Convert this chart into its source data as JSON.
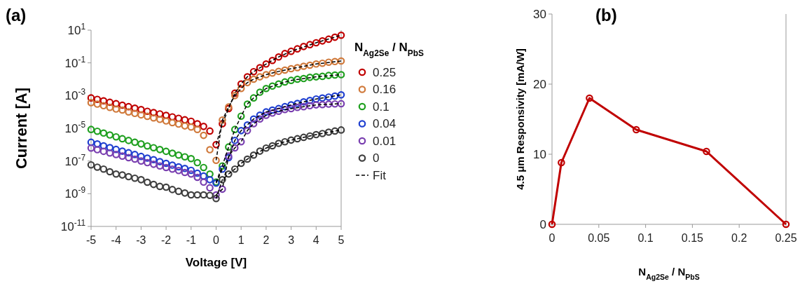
{
  "chart_data": [
    {
      "type": "scatter",
      "title": "(a)",
      "xlabel": "Voltage [V]",
      "ylabel": "Current [A]",
      "legend_title": "N$_{Ag2Se}$ / N$_{PbS}$",
      "legend": "right",
      "log": "y",
      "marker": "circle",
      "x": [
        -5,
        -4.75,
        -4.5,
        -4.25,
        -4,
        -3.75,
        -3.5,
        -3.25,
        -3,
        -2.75,
        -2.5,
        -2.25,
        -2,
        -1.75,
        -1.5,
        -1.25,
        -1,
        -0.75,
        -0.5,
        -0.25,
        0,
        0.25,
        0.5,
        0.75,
        1,
        1.25,
        1.5,
        1.75,
        2,
        2.25,
        2.5,
        2.75,
        3,
        3.25,
        3.5,
        3.75,
        4,
        4.25,
        4.5,
        4.75,
        5
      ],
      "xlim": [
        -5,
        5
      ],
      "xticks": [
        -5,
        -4,
        -3,
        -2,
        -1,
        0,
        1,
        2,
        3,
        4,
        5
      ],
      "ylim": [
        1e-11,
        10
      ],
      "yticks": [
        {
          "value": 1e-11,
          "label": "10$^{-11}$"
        },
        {
          "value": 1e-09,
          "label": "10$^{-9}$"
        },
        {
          "value": 1e-07,
          "label": "10$^{-7}$"
        },
        {
          "value": 1e-05,
          "label": "10$^{-5}$"
        },
        {
          "value": 0.001,
          "label": "10$^{-3}$"
        },
        {
          "value": 0.1,
          "label": "10$^{-1}$"
        },
        {
          "value": 10,
          "label": "10$^{1}$"
        }
      ],
      "series": [
        {
          "name": "0.25",
          "color": "#c00000",
          "values": [
            0.00072,
            0.00059,
            0.00048,
            0.00039,
            0.00032,
            0.00026,
            0.00021,
            0.00017,
            0.00014,
            0.00011,
            9.1e-05,
            7.6e-05,
            6.2e-05,
            5e-05,
            4.1e-05,
            3.3e-05,
            2.7e-05,
            1.9e-05,
            1.3e-05,
            6.8e-06,
            1e-06,
            1.9e-05,
            0.00016,
            0.0014,
            0.0051,
            0.014,
            0.029,
            0.051,
            0.085,
            0.14,
            0.23,
            0.37,
            0.51,
            0.72,
            1.0,
            1.3,
            1.7,
            2.2,
            2.8,
            3.7,
            4.9
          ]
        },
        {
          "name": "0.16",
          "color": "#d07a3c",
          "values": [
            0.00037,
            0.0003,
            0.00024,
            0.00019,
            0.00015,
            0.00013,
            0.0001,
            8.1e-05,
            6.6e-05,
            5.4e-05,
            4.3e-05,
            3.5e-05,
            2.8e-05,
            2.2e-05,
            1.8e-05,
            1.4e-05,
            1.2e-05,
            8.5e-06,
            3.7e-06,
            4.9e-07,
            1.1e-07,
            3.2e-05,
            0.0002,
            0.001,
            0.0027,
            0.0062,
            0.01,
            0.014,
            0.019,
            0.024,
            0.03,
            0.036,
            0.044,
            0.051,
            0.062,
            0.072,
            0.085,
            0.095,
            0.11,
            0.12,
            0.13
          ]
        },
        {
          "name": "0.1",
          "color": "#20a020",
          "values": [
            8.5e-06,
            6.6e-06,
            5.1e-06,
            3.9e-06,
            3e-06,
            2.3e-06,
            1.8e-06,
            1.4e-06,
            1.1e-06,
            8.3e-07,
            6.5e-07,
            5e-07,
            3.9e-07,
            3e-07,
            2.3e-07,
            1.8e-07,
            1.4e-07,
            7.9e-08,
            4e-08,
            1.6e-08,
            5.1e-09,
            5e-08,
            7.2e-07,
            8.5e-06,
            5.5e-05,
            0.0003,
            0.00072,
            0.0016,
            0.0027,
            0.0038,
            0.0051,
            0.0068,
            0.0085,
            0.01,
            0.011,
            0.013,
            0.014,
            0.015,
            0.017,
            0.018,
            0.019
          ]
        },
        {
          "name": "0.04",
          "color": "#2040d0",
          "values": [
            1.4e-06,
            1.1e-06,
            8.5e-07,
            6.6e-07,
            5.1e-07,
            4e-07,
            3.2e-07,
            2.5e-07,
            1.9e-07,
            1.5e-07,
            1.2e-07,
            9.1e-08,
            7.2e-08,
            5.6e-08,
            4.4e-08,
            3.5e-08,
            2.7e-08,
            1.8e-08,
            1.2e-08,
            7.2e-09,
            4.4e-09,
            3.2e-08,
            1.6e-07,
            1.8e-06,
            7.2e-06,
            1.6e-05,
            3.7e-05,
            6.3e-05,
            0.0001,
            0.00013,
            0.00016,
            0.00021,
            0.00027,
            0.00033,
            0.00041,
            0.0005,
            0.00062,
            0.00071,
            0.00081,
            0.00093,
            0.0011
          ]
        },
        {
          "name": "0.01",
          "color": "#7a40b0",
          "values": [
            6.2e-07,
            4.9e-07,
            3.9e-07,
            3.1e-07,
            2.5e-07,
            2e-07,
            1.6e-07,
            1.3e-07,
            1e-07,
            7.9e-08,
            6.3e-08,
            5e-08,
            4e-08,
            3.2e-08,
            2.6e-08,
            2e-08,
            1.6e-08,
            1e-08,
            5.1e-09,
            2.3e-09,
            8.5e-10,
            1.9e-09,
            2e-07,
            6.3e-07,
            1.5e-06,
            7.2e-06,
            1.9e-05,
            3.7e-05,
            6.2e-05,
            8.5e-05,
            0.00011,
            0.00014,
            0.00016,
            0.00019,
            0.00021,
            0.00024,
            0.00027,
            0.00028,
            0.0003,
            0.00031,
            0.00032
          ]
        },
        {
          "name": "0",
          "color": "#404040",
          "values": [
            5.8e-08,
            4.2e-08,
            3.2e-08,
            2.2e-08,
            1.6e-08,
            1.4e-08,
            1.1e-08,
            8.9e-09,
            7.2e-09,
            5e-09,
            3.7e-09,
            2.8e-09,
            2.5e-09,
            1.8e-09,
            1.4e-09,
            1.1e-09,
            8.5e-10,
            8.5e-10,
            8.5e-10,
            7.9e-10,
            5.1e-10,
            7.2e-09,
            1.6e-08,
            3.2e-08,
            7.2e-08,
            1.3e-07,
            2.3e-07,
            4e-07,
            6.2e-07,
            8.5e-07,
            1.2e-06,
            1.5e-06,
            1.9e-06,
            2.3e-06,
            2.8e-06,
            3.4e-06,
            4.1e-06,
            4.8e-06,
            5.8e-06,
            6.8e-06,
            7.9e-06
          ]
        },
        {
          "name": "Fit",
          "type": "line",
          "line_style": "dashed",
          "marker": "none",
          "color": "#000000",
          "x": [
            0,
            0.25,
            0.5,
            0.75,
            1,
            1.25,
            1.5,
            2,
            2.5,
            3,
            4,
            5
          ],
          "values": [
            1e-06,
            1.9e-05,
            0.00016,
            0.0014,
            0.0051,
            0.014,
            0.029,
            0.085,
            0.23,
            0.51,
            1.7,
            4.9
          ]
        },
        {
          "type": "line",
          "line_style": "dashed",
          "marker": "none",
          "color": "#000000",
          "x": [
            0,
            0.25,
            0.5,
            0.75,
            1,
            1.25,
            1.5,
            2,
            2.5,
            3,
            4,
            5
          ],
          "values": [
            1.1e-07,
            3.2e-05,
            0.0002,
            0.001,
            0.0027,
            0.0062,
            0.01,
            0.019,
            0.03,
            0.044,
            0.085,
            0.13
          ]
        },
        {
          "type": "line",
          "line_style": "dashed",
          "marker": "none",
          "color": "#000000",
          "x": [
            0,
            0.25,
            0.5,
            0.75,
            1,
            1.25,
            1.5,
            2,
            2.5,
            3,
            4,
            5
          ],
          "values": [
            5.1e-09,
            5e-08,
            7.2e-07,
            8.5e-06,
            5.5e-05,
            0.0003,
            0.00072,
            0.0027,
            0.0051,
            0.0085,
            0.014,
            0.019
          ]
        },
        {
          "type": "line",
          "line_style": "dashed",
          "marker": "none",
          "color": "#000000",
          "x": [
            0,
            0.25,
            0.5,
            0.75,
            1,
            1.25,
            1.5,
            2,
            2.5,
            3,
            4,
            5
          ],
          "values": [
            4.4e-09,
            3.2e-08,
            1.6e-07,
            1.8e-06,
            7.2e-06,
            1.6e-05,
            3.7e-05,
            0.0001,
            0.00016,
            0.00027,
            0.00062,
            0.0011
          ]
        },
        {
          "type": "line",
          "line_style": "dashed",
          "marker": "none",
          "color": "#000000",
          "x": [
            0,
            0.25,
            0.5,
            0.75,
            1,
            1.25,
            1.5,
            2,
            2.5,
            3,
            4,
            5
          ],
          "values": [
            8.5e-10,
            1.9e-09,
            2e-07,
            6.3e-07,
            1.5e-06,
            7.2e-06,
            1.9e-05,
            6.2e-05,
            0.00011,
            0.00016,
            0.00027,
            0.00032
          ]
        },
        {
          "type": "line",
          "line_style": "dashed",
          "marker": "none",
          "color": "#000000",
          "x": [
            0,
            0.25,
            0.5,
            0.75,
            1,
            1.25,
            1.5,
            2,
            2.5,
            3,
            4,
            5
          ],
          "values": [
            5.1e-10,
            7.2e-09,
            1.6e-08,
            3.2e-08,
            7.2e-08,
            1.3e-07,
            2.3e-07,
            6.2e-07,
            1.2e-06,
            1.9e-06,
            4.1e-06,
            7.9e-06
          ]
        }
      ]
    },
    {
      "type": "line",
      "title": "(b)",
      "xlabel": "N$_{Ag2Se}$ / N$_{PbS}$",
      "ylabel": "4.5 μm Responsivity [mA/W]",
      "marker": "circle",
      "x": [
        0,
        0.01,
        0.04,
        0.09,
        0.165,
        0.25
      ],
      "xlim": [
        0,
        0.25
      ],
      "xticks": [
        0,
        0.05,
        0.1,
        0.15,
        0.2,
        0.25
      ],
      "ylim": [
        0,
        30
      ],
      "yticks": [
        0,
        10,
        20,
        30
      ],
      "series": [
        {
          "color": "#c00000",
          "values": [
            0,
            8.8,
            18,
            13.5,
            10.4,
            0
          ]
        }
      ]
    }
  ]
}
